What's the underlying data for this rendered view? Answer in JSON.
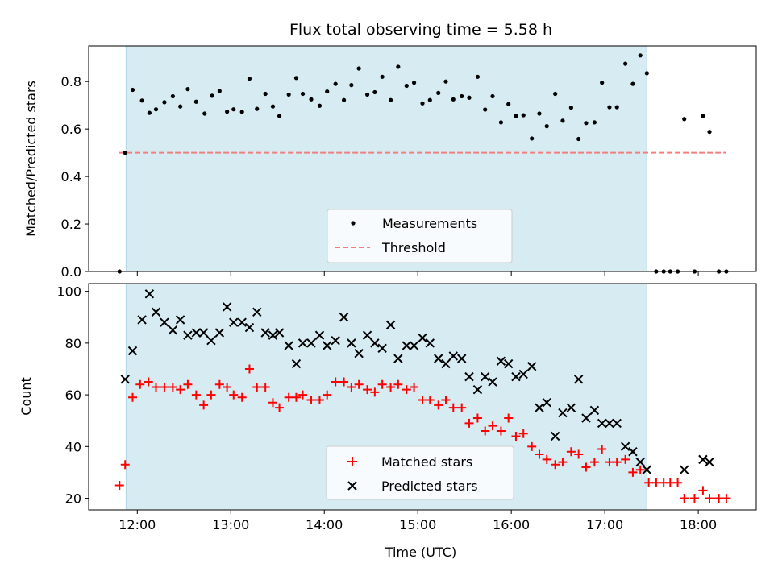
{
  "figure": {
    "title": "Flux total observing time = 5.58 h",
    "xlabel": "Time (UTC)",
    "x_ticks": [
      12,
      13,
      14,
      15,
      16,
      17,
      18
    ],
    "x_tick_labels": [
      "12:00",
      "13:00",
      "14:00",
      "15:00",
      "16:00",
      "17:00",
      "18:00"
    ],
    "xlim": [
      11.48,
      18.62
    ],
    "observing_window": [
      11.88,
      17.45
    ],
    "window_color": "#add8e6",
    "colors": {
      "measurements": "#000000",
      "threshold": "#f08080",
      "matched": "#ff0000",
      "predicted": "#000000"
    }
  },
  "chart_data": [
    {
      "type": "scatter",
      "ylabel": "Matched/Predicted stars",
      "ylim": [
        0,
        0.95
      ],
      "y_ticks": [
        0.0,
        0.2,
        0.4,
        0.6,
        0.8
      ],
      "y_tick_labels": [
        "0.0",
        "0.2",
        "0.4",
        "0.6",
        "0.8"
      ],
      "legend": {
        "placement": "lower center",
        "measurements_label": "Measurements",
        "threshold_label": "Threshold"
      },
      "threshold": {
        "value": 0.5,
        "x_range": [
          11.8,
          18.3
        ]
      },
      "series": [
        {
          "name": "Measurements",
          "points": [
            [
              11.81,
              0.0
            ],
            [
              11.87,
              0.5
            ],
            [
              11.95,
              0.765
            ],
            [
              12.05,
              0.72
            ],
            [
              12.13,
              0.668
            ],
            [
              12.2,
              0.683
            ],
            [
              12.29,
              0.713
            ],
            [
              12.38,
              0.738
            ],
            [
              12.46,
              0.695
            ],
            [
              12.54,
              0.768
            ],
            [
              12.63,
              0.715
            ],
            [
              12.72,
              0.665
            ],
            [
              12.8,
              0.74
            ],
            [
              12.88,
              0.76
            ],
            [
              12.96,
              0.673
            ],
            [
              13.03,
              0.683
            ],
            [
              13.12,
              0.672
            ],
            [
              13.2,
              0.812
            ],
            [
              13.28,
              0.685
            ],
            [
              13.37,
              0.748
            ],
            [
              13.45,
              0.695
            ],
            [
              13.52,
              0.655
            ],
            [
              13.62,
              0.745
            ],
            [
              13.7,
              0.815
            ],
            [
              13.77,
              0.748
            ],
            [
              13.86,
              0.725
            ],
            [
              13.95,
              0.698
            ],
            [
              14.03,
              0.758
            ],
            [
              14.12,
              0.79
            ],
            [
              14.21,
              0.722
            ],
            [
              14.29,
              0.785
            ],
            [
              14.37,
              0.855
            ],
            [
              14.46,
              0.745
            ],
            [
              14.54,
              0.755
            ],
            [
              14.62,
              0.82
            ],
            [
              14.71,
              0.722
            ],
            [
              14.79,
              0.862
            ],
            [
              14.88,
              0.782
            ],
            [
              14.96,
              0.795
            ],
            [
              15.05,
              0.708
            ],
            [
              15.13,
              0.722
            ],
            [
              15.22,
              0.752
            ],
            [
              15.3,
              0.8
            ],
            [
              15.38,
              0.725
            ],
            [
              15.47,
              0.738
            ],
            [
              15.55,
              0.732
            ],
            [
              15.64,
              0.82
            ],
            [
              15.72,
              0.682
            ],
            [
              15.8,
              0.738
            ],
            [
              15.89,
              0.628
            ],
            [
              15.97,
              0.705
            ],
            [
              16.05,
              0.655
            ],
            [
              16.13,
              0.658
            ],
            [
              16.22,
              0.56
            ],
            [
              16.3,
              0.665
            ],
            [
              16.38,
              0.612
            ],
            [
              16.47,
              0.748
            ],
            [
              16.55,
              0.635
            ],
            [
              16.64,
              0.69
            ],
            [
              16.72,
              0.558
            ],
            [
              16.8,
              0.625
            ],
            [
              16.89,
              0.628
            ],
            [
              16.97,
              0.795
            ],
            [
              17.05,
              0.692
            ],
            [
              17.13,
              0.692
            ],
            [
              17.22,
              0.875
            ],
            [
              17.3,
              0.79
            ],
            [
              17.38,
              0.91
            ],
            [
              17.45,
              0.835
            ],
            [
              17.55,
              0.0
            ],
            [
              17.63,
              0.0
            ],
            [
              17.7,
              0.0
            ],
            [
              17.78,
              0.0
            ],
            [
              17.85,
              0.642
            ],
            [
              17.96,
              0.0
            ],
            [
              18.05,
              0.655
            ],
            [
              18.12,
              0.588
            ],
            [
              18.22,
              0.0
            ],
            [
              18.3,
              0.0
            ]
          ]
        }
      ]
    },
    {
      "type": "scatter",
      "ylabel": "Count",
      "ylim": [
        15.5,
        103
      ],
      "y_ticks": [
        20,
        40,
        60,
        80,
        100
      ],
      "y_tick_labels": [
        "20",
        "40",
        "60",
        "80",
        "100"
      ],
      "legend": {
        "placement": "lower center",
        "matched_label": "Matched stars",
        "predicted_label": "Predicted stars"
      },
      "series": [
        {
          "name": "Matched stars",
          "points": [
            [
              11.81,
              25
            ],
            [
              11.87,
              33
            ],
            [
              11.95,
              59
            ],
            [
              12.03,
              64
            ],
            [
              12.12,
              65
            ],
            [
              12.2,
              63
            ],
            [
              12.29,
              63
            ],
            [
              12.38,
              63
            ],
            [
              12.46,
              62
            ],
            [
              12.54,
              64
            ],
            [
              12.63,
              60
            ],
            [
              12.71,
              56
            ],
            [
              12.79,
              60
            ],
            [
              12.88,
              64
            ],
            [
              12.96,
              63
            ],
            [
              13.03,
              60
            ],
            [
              13.12,
              59
            ],
            [
              13.2,
              70
            ],
            [
              13.28,
              63
            ],
            [
              13.37,
              63
            ],
            [
              13.45,
              57
            ],
            [
              13.52,
              55
            ],
            [
              13.62,
              59
            ],
            [
              13.7,
              59
            ],
            [
              13.77,
              60
            ],
            [
              13.86,
              58
            ],
            [
              13.95,
              58
            ],
            [
              14.03,
              60
            ],
            [
              14.12,
              65
            ],
            [
              14.21,
              65
            ],
            [
              14.29,
              63
            ],
            [
              14.37,
              64
            ],
            [
              14.46,
              62
            ],
            [
              14.54,
              61
            ],
            [
              14.62,
              64
            ],
            [
              14.71,
              63
            ],
            [
              14.79,
              64
            ],
            [
              14.88,
              62
            ],
            [
              14.96,
              63
            ],
            [
              15.05,
              58
            ],
            [
              15.13,
              58
            ],
            [
              15.22,
              56
            ],
            [
              15.3,
              58
            ],
            [
              15.38,
              55
            ],
            [
              15.47,
              55
            ],
            [
              15.55,
              49
            ],
            [
              15.64,
              51
            ],
            [
              15.72,
              46
            ],
            [
              15.8,
              48
            ],
            [
              15.89,
              46
            ],
            [
              15.97,
              51
            ],
            [
              16.05,
              44
            ],
            [
              16.13,
              45
            ],
            [
              16.22,
              40
            ],
            [
              16.3,
              37
            ],
            [
              16.38,
              35
            ],
            [
              16.47,
              33
            ],
            [
              16.55,
              34
            ],
            [
              16.64,
              38
            ],
            [
              16.72,
              37
            ],
            [
              16.8,
              32
            ],
            [
              16.89,
              34
            ],
            [
              16.97,
              39
            ],
            [
              17.05,
              34
            ],
            [
              17.13,
              34
            ],
            [
              17.22,
              35
            ],
            [
              17.3,
              30
            ],
            [
              17.38,
              31
            ],
            [
              17.47,
              26
            ],
            [
              17.55,
              26
            ],
            [
              17.63,
              26
            ],
            [
              17.7,
              26
            ],
            [
              17.78,
              26
            ],
            [
              17.85,
              20
            ],
            [
              17.96,
              20
            ],
            [
              18.05,
              23
            ],
            [
              18.12,
              20
            ],
            [
              18.22,
              20
            ],
            [
              18.3,
              20
            ]
          ]
        },
        {
          "name": "Predicted stars",
          "points": [
            [
              11.87,
              66
            ],
            [
              11.95,
              77
            ],
            [
              12.05,
              89
            ],
            [
              12.13,
              99
            ],
            [
              12.2,
              92
            ],
            [
              12.29,
              88
            ],
            [
              12.38,
              85
            ],
            [
              12.46,
              89
            ],
            [
              12.54,
              83
            ],
            [
              12.63,
              84
            ],
            [
              12.71,
              84
            ],
            [
              12.79,
              81
            ],
            [
              12.88,
              84
            ],
            [
              12.96,
              94
            ],
            [
              13.03,
              88
            ],
            [
              13.12,
              88
            ],
            [
              13.2,
              86
            ],
            [
              13.28,
              92
            ],
            [
              13.37,
              84
            ],
            [
              13.45,
              83
            ],
            [
              13.52,
              84
            ],
            [
              13.62,
              79
            ],
            [
              13.7,
              72
            ],
            [
              13.77,
              80
            ],
            [
              13.86,
              80
            ],
            [
              13.95,
              83
            ],
            [
              14.03,
              79
            ],
            [
              14.12,
              81
            ],
            [
              14.21,
              90
            ],
            [
              14.29,
              80
            ],
            [
              14.37,
              76
            ],
            [
              14.46,
              83
            ],
            [
              14.54,
              80
            ],
            [
              14.62,
              78
            ],
            [
              14.71,
              87
            ],
            [
              14.79,
              74
            ],
            [
              14.88,
              79
            ],
            [
              14.96,
              79
            ],
            [
              15.05,
              82
            ],
            [
              15.13,
              80
            ],
            [
              15.22,
              74
            ],
            [
              15.3,
              72
            ],
            [
              15.38,
              75
            ],
            [
              15.47,
              74
            ],
            [
              15.55,
              67
            ],
            [
              15.64,
              62
            ],
            [
              15.72,
              67
            ],
            [
              15.8,
              65
            ],
            [
              15.89,
              73
            ],
            [
              15.97,
              72
            ],
            [
              16.05,
              67
            ],
            [
              16.13,
              68
            ],
            [
              16.22,
              71
            ],
            [
              16.3,
              55
            ],
            [
              16.38,
              57
            ],
            [
              16.47,
              44
            ],
            [
              16.55,
              53
            ],
            [
              16.64,
              55
            ],
            [
              16.72,
              66
            ],
            [
              16.8,
              51
            ],
            [
              16.89,
              54
            ],
            [
              16.97,
              49
            ],
            [
              17.05,
              49
            ],
            [
              17.13,
              49
            ],
            [
              17.22,
              40
            ],
            [
              17.3,
              38
            ],
            [
              17.38,
              34
            ],
            [
              17.45,
              31
            ],
            [
              17.85,
              31
            ],
            [
              18.05,
              35
            ],
            [
              18.12,
              34
            ]
          ]
        }
      ]
    }
  ]
}
